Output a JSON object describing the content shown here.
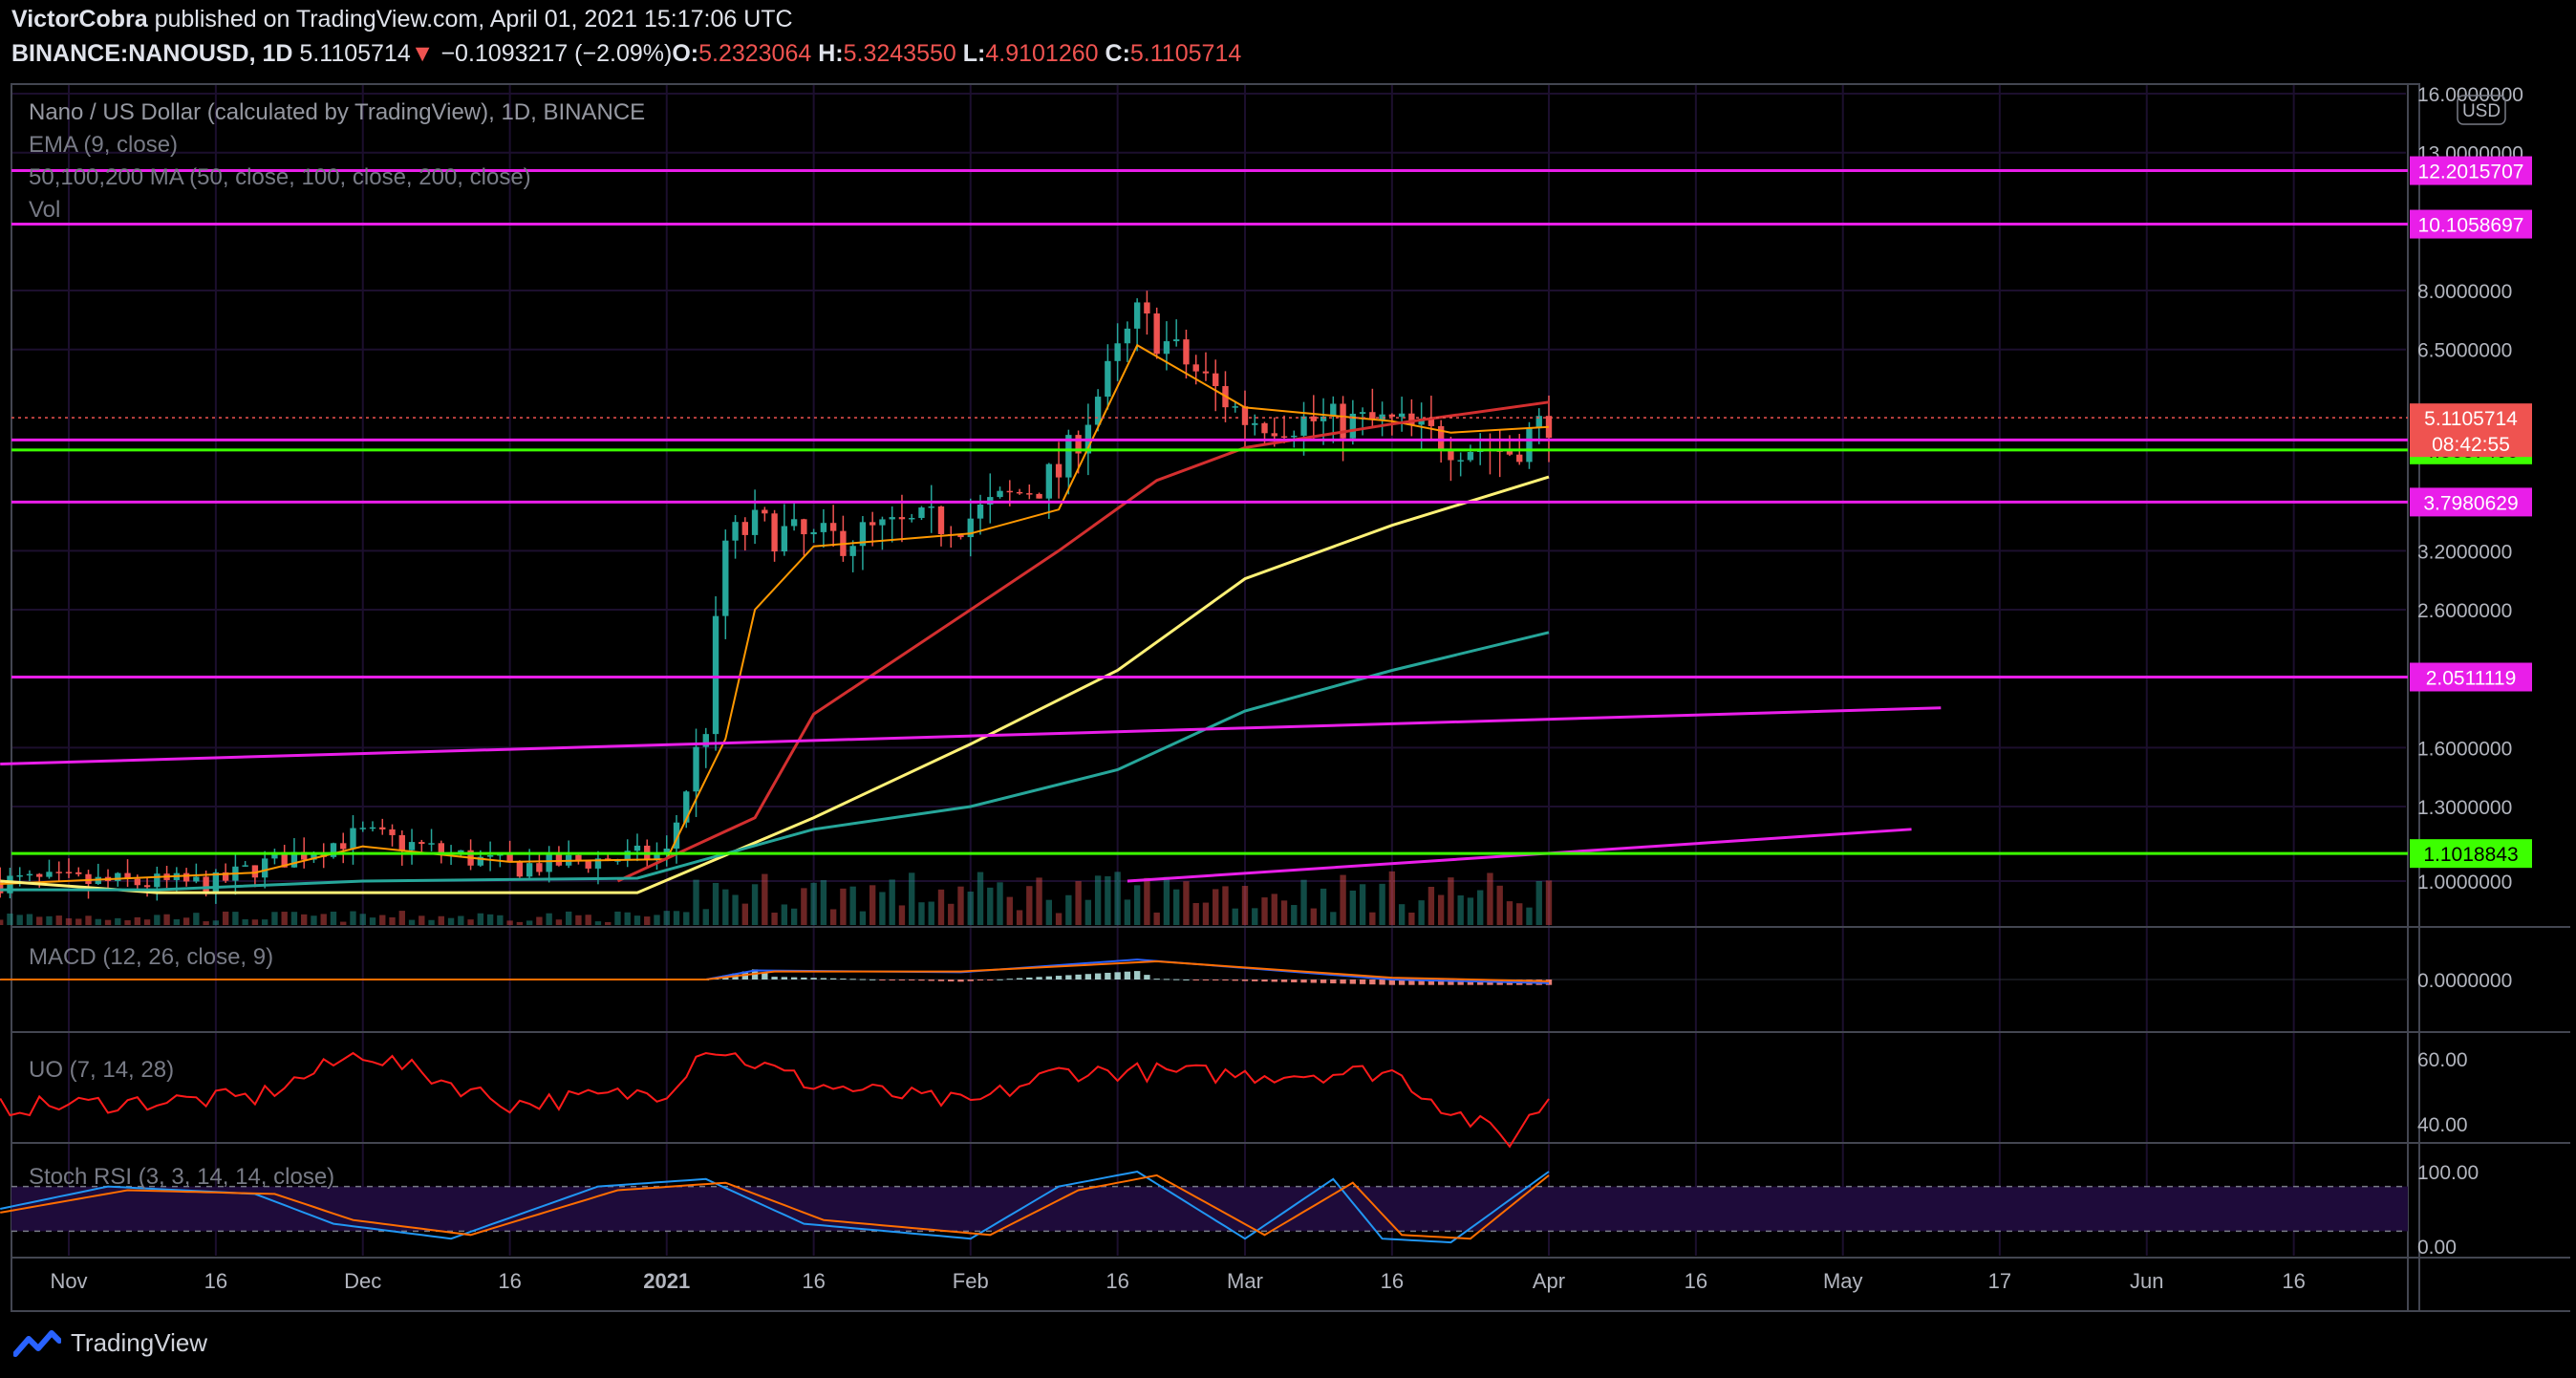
{
  "header": {
    "author": "VictorCobra",
    "published": "published on TradingView.com, April 01, 2021 15:17:06 UTC",
    "symbol": "BINANCE:NANOUSD, 1D",
    "last": "5.1105714",
    "arrow": "▼",
    "change": "−0.1093217 (−2.09%)",
    "o_label": "O:",
    "o_value": "5.2323064",
    "h_label": "H:",
    "h_value": "5.3243550",
    "l_label": "L:",
    "l_value": "4.9101260",
    "c_label": "C:",
    "c_value": "5.1105714"
  },
  "legends": {
    "main_title": "Nano / US Dollar (calculated by TradingView), 1D, BINANCE",
    "ema": "EMA (9, close)",
    "ma": "50,100,200 MA (50, close, 100, close, 200, close)",
    "vol": "Vol",
    "macd": "MACD (12, 26, close, 9)",
    "uo": "UO (7, 14, 28)",
    "stoch": "Stoch RSI (3, 3, 14, 14, close)"
  },
  "currency_badge": "USD",
  "footer_brand": "TradingView",
  "colors": {
    "background": "#000000",
    "grid": "#1c0f2e",
    "up_candle": "#26a69a",
    "down_candle": "#ef5350",
    "ema9": "#ff9800",
    "ma50": "#d32f2f",
    "ma100": "#fff176",
    "ma200": "#26a69a",
    "hline_magenta": "#e91ee9",
    "hline_green": "#3cff00",
    "price_line": "#ef5350",
    "macd": "#2962ff",
    "macd_signal": "#ff6d00",
    "uo": "#ff1a1a",
    "stoch_k": "#2196f3",
    "stoch_d": "#ff6d00",
    "stoch_band": "#1e0b3a"
  },
  "chart_data": [
    {
      "type": "line",
      "panel": "price",
      "title": "Nano / US Dollar (calculated by TradingView), 1D, BINANCE",
      "scale": "log",
      "ylim": [
        0.95,
        16.5
      ],
      "x_ticks": [
        "Nov",
        "16",
        "Dec",
        "16",
        "2021",
        "16",
        "Feb",
        "16",
        "Mar",
        "16",
        "Apr",
        "16",
        "May",
        "17",
        "Jun",
        "16"
      ],
      "y_ticks": [
        "16.0000000",
        "13.0000000",
        "8.0000000",
        "6.5000000",
        "3.2000000",
        "2.6000000",
        "1.6000000",
        "1.3000000",
        "1.0000000"
      ],
      "horizontal_levels": [
        {
          "value": 12.2015707,
          "label": "12.2015707",
          "color": "#e91ee9"
        },
        {
          "value": 10.1058697,
          "label": "10.1058697",
          "color": "#e91ee9"
        },
        {
          "value": 4.7264461,
          "label": "4.7264461",
          "color": "#e91ee9"
        },
        {
          "value": 4.56374,
          "label": "4.5637400",
          "color": "#3cff00"
        },
        {
          "value": 3.7980629,
          "label": "3.7980629",
          "color": "#e91ee9"
        },
        {
          "value": 2.0511119,
          "label": "2.0511119",
          "color": "#e91ee9"
        },
        {
          "value": 1.1018843,
          "label": "1.1018843",
          "color": "#3cff00"
        }
      ],
      "last_price": {
        "value": 5.1105714,
        "label": "5.1105714",
        "countdown": "08:42:55"
      },
      "trendlines": [
        {
          "from": [
            "2020-10-25",
            1.51
          ],
          "to": [
            "2021-05-11",
            1.84
          ],
          "color": "#e91ee9"
        },
        {
          "from": [
            "2021-02-17",
            1.0
          ],
          "to": [
            "2021-05-08",
            1.2
          ],
          "color": "#e91ee9"
        }
      ],
      "series": [
        {
          "name": "Nano / US Dollar",
          "x": [
            "2020-10-25",
            "2020-11-16",
            "2020-11-20",
            "2020-12-01",
            "2020-12-16",
            "2021-01-01",
            "2021-01-05",
            "2021-01-07",
            "2021-01-10",
            "2021-01-16",
            "2021-02-01",
            "2021-02-10",
            "2021-02-18",
            "2021-03-01",
            "2021-03-16",
            "2021-03-22",
            "2021-03-28",
            "2021-04-01"
          ],
          "values": [
            1.0,
            0.99,
            1.05,
            1.18,
            1.05,
            1.1,
            1.75,
            3.3,
            3.5,
            3.3,
            3.6,
            4.2,
            7.3,
            5.1,
            5.0,
            4.7,
            4.55,
            5.11
          ]
        },
        {
          "name": "EMA 9",
          "x": [
            "2020-10-25",
            "2020-11-20",
            "2020-12-01",
            "2020-12-16",
            "2021-01-01",
            "2021-01-07",
            "2021-01-10",
            "2021-01-16",
            "2021-02-01",
            "2021-02-10",
            "2021-02-18",
            "2021-03-01",
            "2021-03-16",
            "2021-03-22",
            "2021-04-01"
          ],
          "values": [
            0.99,
            1.03,
            1.13,
            1.07,
            1.08,
            1.65,
            2.6,
            3.25,
            3.4,
            3.7,
            6.6,
            5.3,
            5.05,
            4.85,
            4.95
          ]
        },
        {
          "name": "MA 50",
          "x": [
            "2020-12-27",
            "2021-01-10",
            "2021-01-16",
            "2021-02-01",
            "2021-02-10",
            "2021-02-20",
            "2021-03-01",
            "2021-03-16",
            "2021-04-01"
          ],
          "values": [
            1.0,
            1.25,
            1.8,
            2.6,
            3.2,
            4.1,
            4.6,
            5.0,
            5.4
          ]
        },
        {
          "name": "MA 100",
          "x": [
            "2020-10-25",
            "2020-11-10",
            "2020-12-29",
            "2021-01-16",
            "2021-02-01",
            "2021-02-16",
            "2021-03-01",
            "2021-03-16",
            "2021-04-01"
          ],
          "values": [
            1.0,
            0.96,
            0.96,
            1.25,
            1.62,
            2.1,
            2.9,
            3.5,
            4.15
          ]
        },
        {
          "name": "MA 200",
          "x": [
            "2020-10-25",
            "2020-11-10",
            "2020-12-01",
            "2020-12-29",
            "2021-01-16",
            "2021-02-01",
            "2021-02-16",
            "2021-03-01",
            "2021-03-16",
            "2021-04-01"
          ],
          "values": [
            0.97,
            0.97,
            1.0,
            1.01,
            1.2,
            1.3,
            1.48,
            1.82,
            2.1,
            2.4
          ]
        }
      ]
    },
    {
      "type": "bar",
      "panel": "volume",
      "title": "Vol"
    },
    {
      "type": "line",
      "panel": "macd",
      "title": "MACD (12, 26, close, 9)",
      "y_ticks": [
        "0.0000000"
      ],
      "series": [
        {
          "name": "MACD",
          "x": [
            "2020-10-25",
            "2021-01-05",
            "2021-01-10",
            "2021-01-31",
            "2021-02-18",
            "2021-03-16",
            "2021-04-01"
          ],
          "values": [
            0.0,
            0.0,
            0.25,
            0.2,
            0.55,
            0.0,
            -0.1
          ]
        },
        {
          "name": "Signal",
          "x": [
            "2020-10-25",
            "2021-01-05",
            "2021-01-12",
            "2021-01-31",
            "2021-02-20",
            "2021-03-16",
            "2021-04-01"
          ],
          "values": [
            0.0,
            0.0,
            0.22,
            0.22,
            0.5,
            0.05,
            -0.05
          ]
        }
      ]
    },
    {
      "type": "line",
      "panel": "uo",
      "title": "UO (7, 14, 28)",
      "y_ticks": [
        "60.00",
        "40.00"
      ],
      "series": [
        {
          "name": "UO",
          "x": [
            "2020-10-25",
            "2020-11-20",
            "2020-12-01",
            "2020-12-16",
            "2021-01-01",
            "2021-01-05",
            "2021-01-16",
            "2021-02-01",
            "2021-02-10",
            "2021-02-18",
            "2021-03-01",
            "2021-03-16",
            "2021-03-22",
            "2021-03-28",
            "2021-04-01"
          ],
          "values": [
            45,
            48,
            62,
            46,
            50,
            64,
            52,
            46,
            56,
            56,
            55,
            56,
            44,
            35,
            48
          ]
        }
      ]
    },
    {
      "type": "line",
      "panel": "stoch_rsi",
      "title": "Stoch RSI (3, 3, 14, 14, close)",
      "y_ticks": [
        "100.00",
        "0.00"
      ],
      "series": [
        {
          "name": "%K",
          "x": [
            "2020-10-25",
            "2020-11-05",
            "2020-11-20",
            "2020-11-28",
            "2020-12-10",
            "2020-12-25",
            "2021-01-05",
            "2021-01-15",
            "2021-02-01",
            "2021-02-10",
            "2021-02-18",
            "2021-03-01",
            "2021-03-10",
            "2021-03-15",
            "2021-03-22",
            "2021-04-01"
          ],
          "values": [
            50,
            80,
            70,
            30,
            10,
            80,
            90,
            30,
            10,
            80,
            100,
            10,
            90,
            10,
            5,
            100
          ]
        },
        {
          "name": "%D",
          "x": [
            "2020-10-25",
            "2020-11-07",
            "2020-11-22",
            "2020-11-30",
            "2020-12-12",
            "2020-12-27",
            "2021-01-07",
            "2021-01-17",
            "2021-02-03",
            "2021-02-12",
            "2021-02-20",
            "2021-03-03",
            "2021-03-12",
            "2021-03-17",
            "2021-03-24",
            "2021-04-01"
          ],
          "values": [
            45,
            75,
            70,
            35,
            15,
            75,
            85,
            35,
            15,
            75,
            95,
            15,
            85,
            15,
            10,
            95
          ]
        }
      ]
    }
  ]
}
